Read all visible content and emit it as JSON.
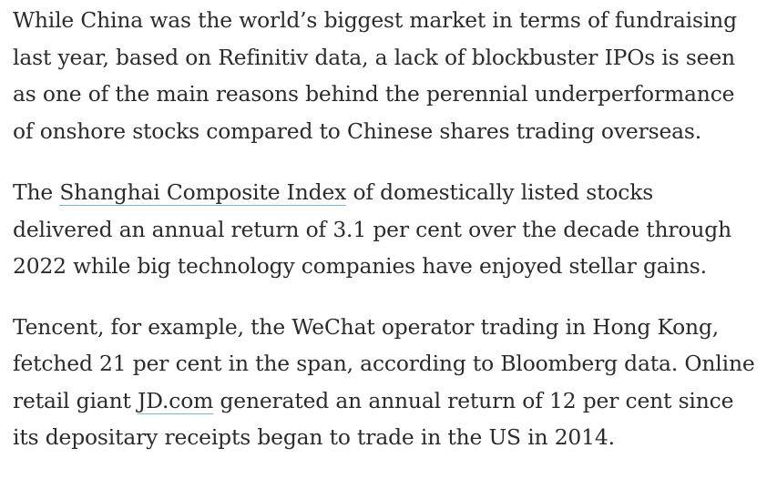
{
  "article": {
    "paragraphs": [
      {
        "lines": [
          "While China was the world’s biggest market in terms of fundraising",
          "last year, based on Refinitiv data, a lack of blockbuster IPOs is seen",
          "as one of the main reasons behind the perennial underperformance",
          "of onshore stocks compared to Chinese shares trading overseas."
        ]
      },
      {
        "line1_before": "The ",
        "link_text": "Shanghai Composite Index",
        "line1_after": " of domestically listed stocks",
        "lines_rest": [
          "delivered an annual return of 3.1 per cent over the decade through",
          "2022 while big technology companies have enjoyed stellar gains."
        ]
      },
      {
        "lines_first": [
          "Tencent, for example, the WeChat operator trading in Hong Kong,",
          "fetched 21 per cent in the span, according to Bloomberg data. Online"
        ],
        "line3_before": "retail giant ",
        "link_text": "JD.com",
        "line3_after": " generated an annual return of 12 per cent since",
        "line4": "its depositary receipts began to trade in the US in 2014."
      }
    ]
  }
}
